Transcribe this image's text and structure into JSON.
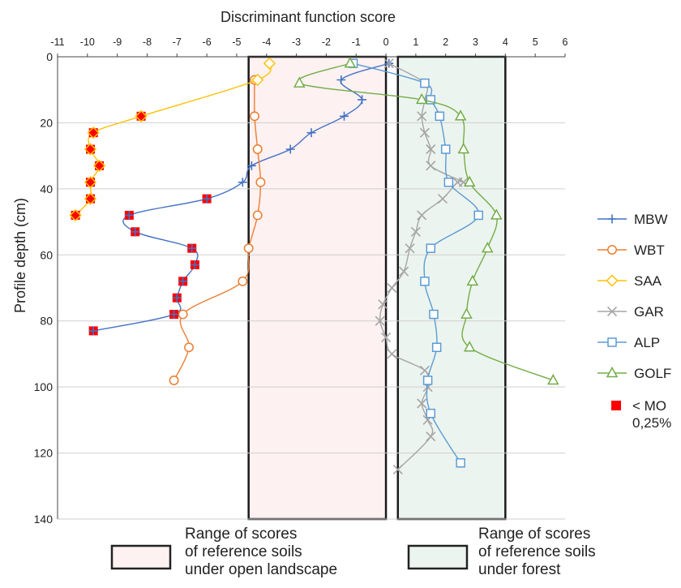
{
  "chart_data": {
    "type": "line",
    "title": "",
    "xlabel": "Discriminant function score",
    "ylabel": "Profile depth (cm)",
    "xlim": [
      -11,
      6
    ],
    "ylim": [
      0,
      140
    ],
    "x_ticks": [
      -11,
      -10,
      -9,
      -8,
      -7,
      -6,
      -5,
      -4,
      -3,
      -2,
      -1,
      0,
      1,
      2,
      3,
      4,
      5,
      6
    ],
    "y_ticks": [
      0,
      20,
      40,
      60,
      80,
      100,
      120,
      140
    ],
    "grid": "horizontal",
    "x_axis_position": "top",
    "y_inverted": true,
    "legend_position": "right",
    "series": [
      {
        "name": "MBW",
        "color": "#4472c4",
        "marker": "plus",
        "points": [
          [
            0.1,
            2
          ],
          [
            -1.5,
            7
          ],
          [
            -0.8,
            13
          ],
          [
            -1.4,
            18
          ],
          [
            -2.5,
            23
          ],
          [
            -3.2,
            28
          ],
          [
            -4.5,
            33
          ],
          [
            -4.8,
            38
          ],
          [
            -6,
            43
          ],
          [
            -8.6,
            48
          ],
          [
            -8.4,
            53
          ],
          [
            -6.5,
            58
          ],
          [
            -6.4,
            63
          ],
          [
            -6.8,
            68
          ],
          [
            -7,
            73
          ],
          [
            -7.1,
            78
          ],
          [
            -9.8,
            83
          ]
        ]
      },
      {
        "name": "WBT",
        "color": "#ed7d31",
        "marker": "circle",
        "points": [
          [
            -4.4,
            7
          ],
          [
            -4.4,
            18
          ],
          [
            -4.3,
            28
          ],
          [
            -4.2,
            38
          ],
          [
            -4.3,
            48
          ],
          [
            -4.6,
            58
          ],
          [
            -4.8,
            68
          ],
          [
            -6.8,
            78
          ],
          [
            -6.6,
            88
          ],
          [
            -7.1,
            98
          ]
        ]
      },
      {
        "name": "SAA",
        "color": "#ffc000",
        "marker": "diamond",
        "points": [
          [
            -3.9,
            2
          ],
          [
            -4.3,
            7
          ],
          [
            -8.2,
            18
          ],
          [
            -9.8,
            23
          ],
          [
            -9.9,
            28
          ],
          [
            -9.6,
            33
          ],
          [
            -9.9,
            38
          ],
          [
            -9.9,
            43
          ],
          [
            -10.4,
            48
          ]
        ]
      },
      {
        "name": "GAR",
        "color": "#a5a5a5",
        "marker": "x",
        "points": [
          [
            0.1,
            2
          ],
          [
            1.3,
            8
          ],
          [
            1.3,
            13
          ],
          [
            1.2,
            18
          ],
          [
            1.3,
            23
          ],
          [
            1.5,
            28
          ],
          [
            1.5,
            33
          ],
          [
            2.6,
            38
          ],
          [
            2.4,
            38
          ],
          [
            1.9,
            43
          ],
          [
            1.2,
            48
          ],
          [
            1.0,
            53
          ],
          [
            0.8,
            58
          ],
          [
            0.6,
            65
          ],
          [
            0.2,
            70
          ],
          [
            -0.1,
            75
          ],
          [
            -0.2,
            80
          ],
          [
            0,
            85
          ],
          [
            0.2,
            90
          ],
          [
            1.3,
            95
          ],
          [
            1.4,
            100
          ],
          [
            1.2,
            105
          ],
          [
            1.4,
            110
          ],
          [
            1.5,
            115
          ],
          [
            0.4,
            125
          ]
        ]
      },
      {
        "name": "ALP",
        "color": "#5b9bd5",
        "marker": "square",
        "points": [
          [
            -1.1,
            2
          ],
          [
            1.3,
            8
          ],
          [
            1.5,
            13
          ],
          [
            1.8,
            18
          ],
          [
            2.0,
            28
          ],
          [
            2.1,
            38
          ],
          [
            3.1,
            48
          ],
          [
            1.5,
            58
          ],
          [
            1.3,
            68
          ],
          [
            1.6,
            78
          ],
          [
            1.7,
            88
          ],
          [
            1.4,
            98
          ],
          [
            1.5,
            108
          ],
          [
            2.5,
            123
          ]
        ]
      },
      {
        "name": "GOLF",
        "color": "#70ad47",
        "marker": "triangle",
        "points": [
          [
            -1.2,
            2
          ],
          [
            -2.9,
            8
          ],
          [
            1.2,
            13
          ],
          [
            2.5,
            18
          ],
          [
            2.6,
            28
          ],
          [
            2.8,
            38
          ],
          [
            3.7,
            48
          ],
          [
            3.4,
            58
          ],
          [
            2.9,
            68
          ],
          [
            2.7,
            78
          ],
          [
            2.8,
            88
          ],
          [
            5.6,
            98
          ]
        ]
      }
    ],
    "highlight": {
      "name": "< MO 0,25%",
      "color": "#ff0000",
      "marker": "square",
      "points": [
        [
          -8.2,
          18
        ],
        [
          -9.8,
          23
        ],
        [
          -9.9,
          28
        ],
        [
          -9.6,
          33
        ],
        [
          -9.9,
          38
        ],
        [
          -9.9,
          43
        ],
        [
          -10.4,
          48
        ],
        [
          -6,
          43
        ],
        [
          -8.6,
          48
        ],
        [
          -8.4,
          53
        ],
        [
          -6.5,
          58
        ],
        [
          -6.4,
          63
        ],
        [
          -6.8,
          68
        ],
        [
          -7,
          73
        ],
        [
          -7.1,
          78
        ],
        [
          -9.8,
          83
        ]
      ]
    },
    "ranges": [
      {
        "label": "Range of scores of reference soils under open landscape",
        "x": [
          -4.6,
          0
        ],
        "y": [
          0,
          140
        ],
        "fill": "#fdf1f1"
      },
      {
        "label": "Range of scores of reference soils under forest",
        "x": [
          0.4,
          4
        ],
        "y": [
          0,
          140
        ],
        "fill": "#ecf4ef"
      }
    ]
  },
  "legend": {
    "items": [
      "MBW",
      "WBT",
      "SAA",
      "GAR",
      "ALP",
      "GOLF"
    ],
    "mo_line1": "< MO",
    "mo_line2": "0,25%"
  },
  "range_legend": {
    "open": {
      "line1": "Range of scores",
      "line2": "of reference soils",
      "line3": "under open landscape"
    },
    "forest": {
      "line1": "Range of scores",
      "line2": "of reference soils",
      "line3": "under forest"
    }
  }
}
